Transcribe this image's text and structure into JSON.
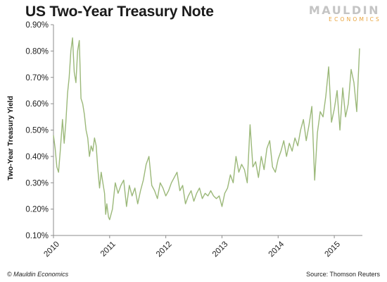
{
  "header": {
    "title": "US Two-Year Treasury Note",
    "brand_name": "MAULDIN",
    "brand_sub": "ECONOMICS"
  },
  "footer": {
    "copyright": "© Mauldin Economics",
    "source": "Source: Thomson Reuters"
  },
  "colors": {
    "line": "#9bb879",
    "axis": "#8c8c8c",
    "brand_gray": "#c4c4c4",
    "brand_orange": "#e9a33a"
  },
  "chart_data": {
    "type": "line",
    "title": "US Two-Year Treasury Note",
    "xlabel": "",
    "ylabel": "Two-Year Treasury Yield",
    "xlim": [
      2010,
      2015.5
    ],
    "ylim": [
      0.1,
      0.9
    ],
    "x_ticks": [
      2010,
      2011,
      2012,
      2013,
      2014,
      2015
    ],
    "x_tick_labels": [
      "2010",
      "2011",
      "2012",
      "2013",
      "2014",
      "2015"
    ],
    "y_ticks": [
      0.1,
      0.2,
      0.3,
      0.4,
      0.5,
      0.6,
      0.7,
      0.8,
      0.9
    ],
    "y_tick_labels": [
      "0.10%",
      "0.20%",
      "0.30%",
      "0.40%",
      "0.50%",
      "0.60%",
      "0.70%",
      "0.80%",
      "0.90%"
    ],
    "grid": false,
    "legend": "none",
    "series": [
      {
        "x": [
          2010.0,
          2010.03,
          2010.06,
          2010.09,
          2010.12,
          2010.16,
          2010.19,
          2010.22,
          2010.25,
          2010.28,
          2010.31,
          2010.34,
          2010.37,
          2010.4,
          2010.43,
          2010.46,
          2010.49,
          2010.52,
          2010.55,
          2010.58,
          2010.61,
          2010.64,
          2010.67,
          2010.7,
          2010.73,
          2010.76,
          2010.79,
          2010.82,
          2010.85,
          2010.88,
          2010.91,
          2010.93,
          2010.95,
          2010.98,
          2011.0,
          2011.05,
          2011.1,
          2011.15,
          2011.2,
          2011.25,
          2011.3,
          2011.35,
          2011.4,
          2011.45,
          2011.5,
          2011.55,
          2011.6,
          2011.65,
          2011.7,
          2011.75,
          2011.8,
          2011.85,
          2011.9,
          2011.95,
          2012.0,
          2012.05,
          2012.1,
          2012.15,
          2012.2,
          2012.25,
          2012.3,
          2012.35,
          2012.4,
          2012.45,
          2012.5,
          2012.55,
          2012.6,
          2012.65,
          2012.7,
          2012.75,
          2012.8,
          2012.85,
          2012.9,
          2012.95,
          2013.0,
          2013.05,
          2013.1,
          2013.15,
          2013.2,
          2013.25,
          2013.3,
          2013.35,
          2013.4,
          2013.45,
          2013.5,
          2013.55,
          2013.6,
          2013.65,
          2013.7,
          2013.75,
          2013.8,
          2013.85,
          2013.9,
          2013.95,
          2014.0,
          2014.05,
          2014.1,
          2014.15,
          2014.2,
          2014.25,
          2014.3,
          2014.35,
          2014.4,
          2014.45,
          2014.5,
          2014.55,
          2014.6,
          2014.65,
          2014.7,
          2014.75,
          2014.8,
          2014.85,
          2014.9,
          2014.95,
          2015.0,
          2015.05,
          2015.1,
          2015.15,
          2015.2,
          2015.25,
          2015.3,
          2015.35,
          2015.4,
          2015.45
        ],
        "y": [
          0.48,
          0.43,
          0.36,
          0.34,
          0.42,
          0.54,
          0.45,
          0.53,
          0.64,
          0.7,
          0.8,
          0.85,
          0.72,
          0.68,
          0.8,
          0.84,
          0.62,
          0.6,
          0.56,
          0.5,
          0.47,
          0.4,
          0.44,
          0.42,
          0.47,
          0.44,
          0.35,
          0.28,
          0.34,
          0.3,
          0.26,
          0.18,
          0.22,
          0.17,
          0.16,
          0.2,
          0.3,
          0.26,
          0.29,
          0.31,
          0.21,
          0.29,
          0.25,
          0.28,
          0.22,
          0.27,
          0.31,
          0.37,
          0.4,
          0.29,
          0.27,
          0.24,
          0.3,
          0.28,
          0.25,
          0.27,
          0.3,
          0.32,
          0.34,
          0.27,
          0.29,
          0.22,
          0.25,
          0.27,
          0.23,
          0.26,
          0.28,
          0.24,
          0.26,
          0.25,
          0.27,
          0.25,
          0.24,
          0.25,
          0.21,
          0.26,
          0.28,
          0.33,
          0.3,
          0.4,
          0.34,
          0.37,
          0.35,
          0.3,
          0.52,
          0.36,
          0.38,
          0.32,
          0.4,
          0.35,
          0.43,
          0.46,
          0.36,
          0.34,
          0.39,
          0.42,
          0.46,
          0.4,
          0.45,
          0.42,
          0.47,
          0.44,
          0.5,
          0.54,
          0.46,
          0.52,
          0.59,
          0.31,
          0.49,
          0.57,
          0.55,
          0.63,
          0.74,
          0.53,
          0.58,
          0.65,
          0.5,
          0.66,
          0.55,
          0.6,
          0.73,
          0.68,
          0.57,
          0.81
        ]
      }
    ]
  }
}
